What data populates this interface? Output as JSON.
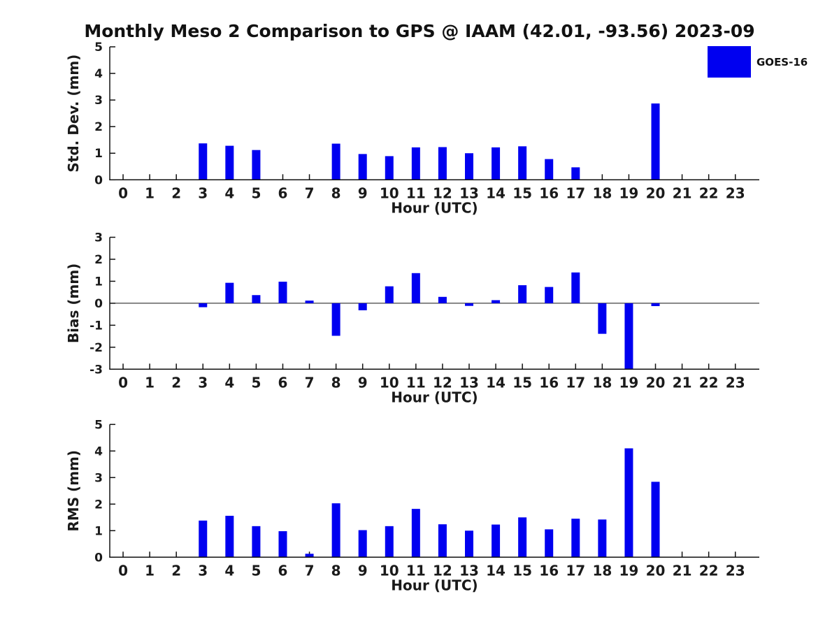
{
  "title": "Monthly Meso 2 Comparison to GPS @ IAAM (42.01, -93.56) 2023-09",
  "legend": {
    "label": "GOES-16",
    "color": "#0000f0",
    "position": "top-right"
  },
  "chart_data": [
    {
      "id": "std_dev",
      "type": "bar",
      "title": "",
      "ylabel": "Std. Dev. (mm)",
      "xlabel": "Hour (UTC)",
      "ylim": [
        0,
        5
      ],
      "yticks": [
        0,
        1,
        2,
        3,
        4,
        5
      ],
      "grid": false,
      "bar_color": "#0000f0",
      "categories": [
        "0",
        "1",
        "2",
        "3",
        "4",
        "5",
        "6",
        "7",
        "8",
        "9",
        "10",
        "11",
        "12",
        "13",
        "14",
        "15",
        "16",
        "17",
        "18",
        "19",
        "20",
        "21",
        "22",
        "23"
      ],
      "values": [
        null,
        null,
        null,
        1.37,
        1.28,
        1.12,
        null,
        null,
        1.36,
        0.97,
        0.89,
        1.22,
        1.23,
        1.0,
        1.22,
        1.26,
        0.78,
        0.47,
        null,
        null,
        2.87,
        null,
        null,
        null
      ]
    },
    {
      "id": "bias",
      "type": "bar",
      "title": "",
      "ylabel": "Bias (mm)",
      "xlabel": "Hour (UTC)",
      "ylim": [
        -3,
        3
      ],
      "yticks": [
        -3,
        -2,
        -1,
        0,
        1,
        2,
        3
      ],
      "zero_line": true,
      "grid": false,
      "bar_color": "#0000f0",
      "categories": [
        "0",
        "1",
        "2",
        "3",
        "4",
        "5",
        "6",
        "7",
        "8",
        "9",
        "10",
        "11",
        "12",
        "13",
        "14",
        "15",
        "16",
        "17",
        "18",
        "19",
        "20",
        "21",
        "22",
        "23"
      ],
      "values": [
        null,
        null,
        null,
        -0.18,
        0.93,
        0.37,
        0.98,
        0.12,
        -1.48,
        -0.32,
        0.77,
        1.37,
        0.29,
        -0.12,
        0.14,
        0.82,
        0.74,
        1.4,
        -1.39,
        -3.0,
        -0.13,
        null,
        null,
        null
      ]
    },
    {
      "id": "rms",
      "type": "bar",
      "title": "",
      "ylabel": "RMS (mm)",
      "xlabel": "Hour (UTC)",
      "ylim": [
        0,
        5
      ],
      "yticks": [
        0,
        1,
        2,
        3,
        4,
        5
      ],
      "grid": false,
      "bar_color": "#0000f0",
      "categories": [
        "0",
        "1",
        "2",
        "3",
        "4",
        "5",
        "6",
        "7",
        "8",
        "9",
        "10",
        "11",
        "12",
        "13",
        "14",
        "15",
        "16",
        "17",
        "18",
        "19",
        "20",
        "21",
        "22",
        "23"
      ],
      "values": [
        null,
        null,
        null,
        1.38,
        1.56,
        1.17,
        0.98,
        0.13,
        2.03,
        1.02,
        1.17,
        1.82,
        1.24,
        1.0,
        1.23,
        1.5,
        1.05,
        1.45,
        1.42,
        4.1,
        2.84,
        null,
        null,
        null
      ]
    }
  ]
}
